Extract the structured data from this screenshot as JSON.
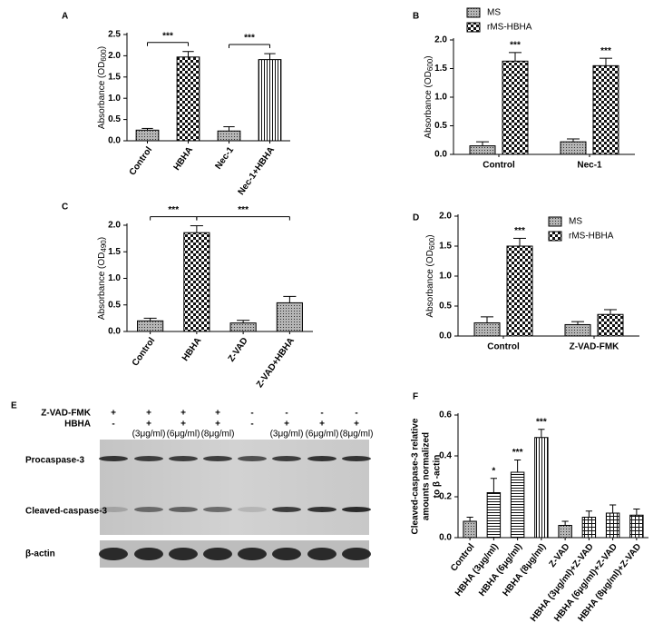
{
  "chart_data": [
    {
      "type": "bar",
      "label": "A",
      "ylabel": {
        "text": "Absorbance (OD",
        "sub": "600",
        "end": ")"
      },
      "categories": [
        "Control",
        "HBHA",
        "Nec-1",
        "Nec-1+HBHA"
      ],
      "values": [
        0.25,
        1.97,
        0.23,
        1.91
      ],
      "errors": [
        0.04,
        0.13,
        0.1,
        0.14
      ],
      "patterns": [
        "dots",
        "checker",
        "dots",
        "vlines"
      ],
      "ylim": [
        0,
        2.5
      ],
      "yticks": [
        {
          "value": 0,
          "label": "0.0"
        },
        {
          "value": 0.5,
          "label": "0.5"
        },
        {
          "value": 1,
          "label": "1.0"
        },
        {
          "value": 1.5,
          "label": "1.5"
        },
        {
          "value": 2,
          "label": "2.0"
        },
        {
          "value": 2.5,
          "label": "2.5"
        }
      ],
      "brackets": [
        {
          "text": "***",
          "between": [
            "Control",
            "HBHA"
          ]
        },
        {
          "text": "***",
          "between": [
            "Nec-1",
            "Nec-1+HBHA"
          ]
        }
      ]
    },
    {
      "type": "bar",
      "label": "B",
      "ylabel": {
        "text": "Absorbance (OD",
        "sub": "600",
        "end": ")"
      },
      "categories": [
        "Control",
        "Nec-1"
      ],
      "legend": "top-left",
      "series": [
        {
          "name": "MS",
          "pattern": "dots",
          "values": [
            0.15,
            0.22
          ],
          "errors": [
            0.07,
            0.05
          ]
        },
        {
          "name": "rMS-HBHA",
          "pattern": "checker",
          "values": [
            1.63,
            1.55
          ],
          "errors": [
            0.15,
            0.13
          ],
          "stars": [
            "***",
            "***"
          ]
        }
      ],
      "ylim": [
        0,
        2
      ],
      "yticks": [
        {
          "value": 0,
          "label": "0.0"
        },
        {
          "value": 0.5,
          "label": "0.5"
        },
        {
          "value": 1,
          "label": "1.0"
        },
        {
          "value": 1.5,
          "label": "1.5"
        },
        {
          "value": 2,
          "label": "2.0"
        }
      ]
    },
    {
      "type": "bar",
      "label": "C",
      "ylabel": {
        "text": "Absorbance (OD",
        "sub": "490",
        "end": ")"
      },
      "categories": [
        "Control",
        "HBHA",
        "Z-VAD",
        "Z-VAD+HBHA"
      ],
      "values": [
        0.2,
        1.86,
        0.16,
        0.54
      ],
      "errors": [
        0.05,
        0.13,
        0.05,
        0.12
      ],
      "patterns": [
        "dots",
        "checker",
        "dots",
        "dots"
      ],
      "ylim": [
        0,
        2
      ],
      "yticks": [
        {
          "value": 0,
          "label": "0.0"
        },
        {
          "value": 0.5,
          "label": "0.5"
        },
        {
          "value": 1,
          "label": "1.0"
        },
        {
          "value": 1.5,
          "label": "1.5"
        },
        {
          "value": 2,
          "label": "2.0"
        }
      ],
      "brackets": [
        {
          "text": "***",
          "between": [
            "Control",
            "HBHA"
          ]
        },
        {
          "text": "***",
          "between": [
            "HBHA",
            "Z-VAD+HBHA"
          ]
        }
      ]
    },
    {
      "type": "bar",
      "label": "D",
      "ylabel": {
        "text": "Absorbance (OD",
        "sub": "600",
        "end": ")"
      },
      "categories": [
        "Control",
        "Z-VAD-FMK"
      ],
      "legend": "top-right",
      "series": [
        {
          "name": "MS",
          "pattern": "dots",
          "values": [
            0.22,
            0.19
          ],
          "errors": [
            0.1,
            0.05
          ]
        },
        {
          "name": "rMS-HBHA",
          "pattern": "checker",
          "values": [
            1.5,
            0.36
          ],
          "errors": [
            0.13,
            0.08
          ],
          "stars": [
            "***",
            null
          ]
        }
      ],
      "ylim": [
        0,
        2
      ],
      "yticks": [
        {
          "value": 0,
          "label": "0.0"
        },
        {
          "value": 0.5,
          "label": "0.5"
        },
        {
          "value": 1,
          "label": "1.0"
        },
        {
          "value": 1.5,
          "label": "1.5"
        },
        {
          "value": 2,
          "label": "2.0"
        }
      ]
    },
    {
      "type": "bar",
      "label": "F",
      "ylabel": {
        "lines": [
          "Cleaved-caspase-3 relative",
          "amounts normalized",
          "to β -actin"
        ]
      },
      "categories": [
        "Control",
        "HBHA (3μg/ml)",
        "HBHA (6μg/ml)",
        "HBHA (8μg/ml)",
        "Z-VAD",
        "HBHA (3μg/ml)+Z-VAD",
        "HBHA (6μg/ml)+Z-VAD",
        "HBHA (8μg/ml)+Z-VAD"
      ],
      "values": [
        0.08,
        0.22,
        0.32,
        0.49,
        0.06,
        0.1,
        0.12,
        0.11
      ],
      "errors": [
        0.02,
        0.07,
        0.06,
        0.04,
        0.02,
        0.03,
        0.04,
        0.03
      ],
      "patterns": [
        "dots",
        "hlines",
        "hlines",
        "vlines",
        "dots",
        "grid",
        "grid",
        "grid"
      ],
      "stars": [
        null,
        "*",
        "***",
        "***",
        null,
        null,
        null,
        null
      ],
      "ylim": [
        0,
        0.6
      ],
      "yticks": [
        {
          "value": 0,
          "label": "0.0"
        },
        {
          "value": 0.2,
          "label": "0.2"
        },
        {
          "value": 0.4,
          "label": "0.4"
        },
        {
          "value": 0.6,
          "label": "0.6"
        }
      ]
    }
  ],
  "blot": {
    "label": "E",
    "rows": [
      {
        "name": "Z-VAD-FMK",
        "signs": [
          "+",
          "+",
          "+",
          "+",
          "-",
          "-",
          "-",
          "-"
        ]
      },
      {
        "name": "HBHA",
        "signs": [
          "-",
          "+",
          "+",
          "+",
          "-",
          "+",
          "+",
          "+"
        ]
      }
    ],
    "doses": [
      null,
      "(3μg/ml)",
      "(6μg/ml)",
      "(8μg/ml)",
      null,
      "(3μg/ml)",
      "(6μg/ml)",
      "(8μg/ml)"
    ],
    "bands": [
      "Procaspase-3",
      "Cleaved-caspase-3",
      "β-actin"
    ]
  }
}
